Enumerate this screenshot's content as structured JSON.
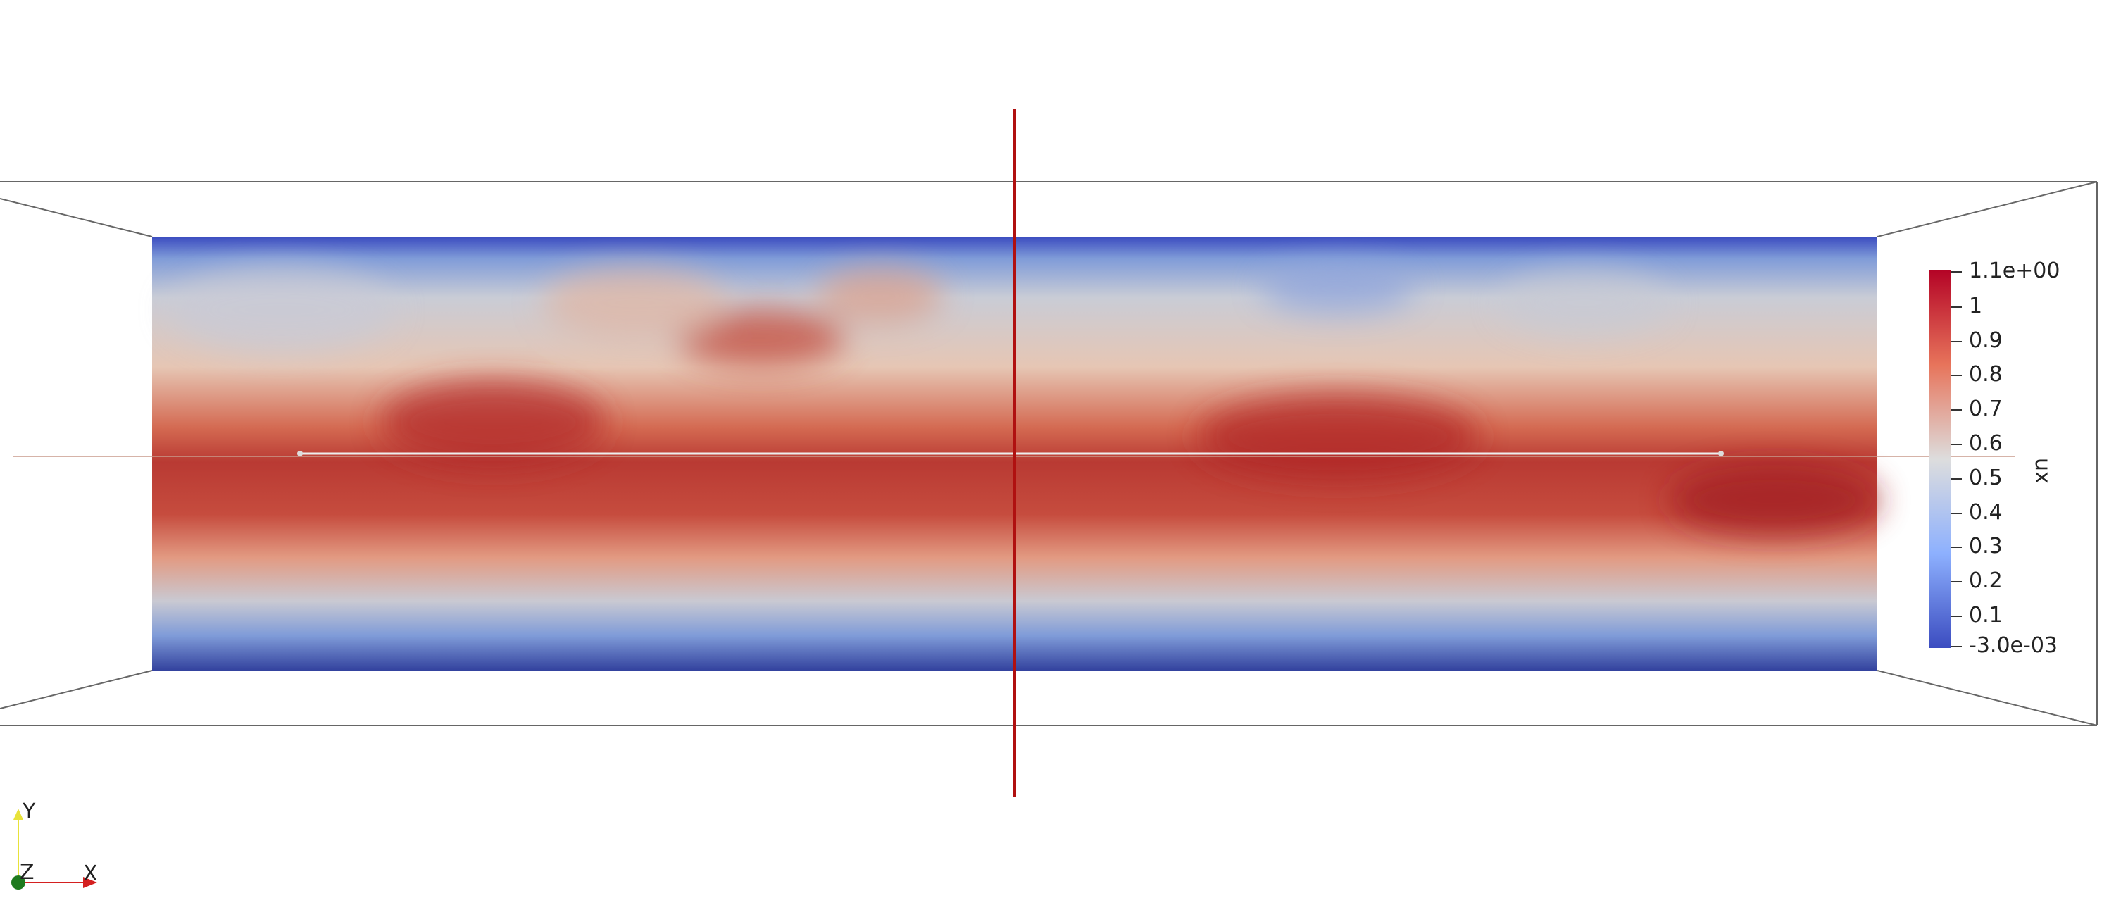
{
  "colors": {
    "background": "#ffffff",
    "box_edge": "#666666",
    "probe_line": "#eeeeee",
    "plane_widget": "#b01010",
    "colormap_low": "#3b4cc0",
    "colormap_mid": "#dddddd",
    "colormap_high": "#b40426"
  },
  "field": {
    "array_name": "ux",
    "colormap": "Cool to Warm",
    "range": [
      -0.003,
      1.1
    ]
  },
  "legend": {
    "title": "ux",
    "ticks": [
      {
        "label": "1.1e+00",
        "value": 1.1
      },
      {
        "label": "1",
        "value": 1.0
      },
      {
        "label": "0.9",
        "value": 0.9
      },
      {
        "label": "0.8",
        "value": 0.8
      },
      {
        "label": "0.7",
        "value": 0.7
      },
      {
        "label": "0.6",
        "value": 0.6
      },
      {
        "label": "0.5",
        "value": 0.5
      },
      {
        "label": "0.4",
        "value": 0.4
      },
      {
        "label": "0.3",
        "value": 0.3
      },
      {
        "label": "0.2",
        "value": 0.2
      },
      {
        "label": "0.1",
        "value": 0.1
      },
      {
        "label": "-3.0e-03",
        "value": -0.003
      }
    ]
  },
  "orientation_axes": {
    "y_label": "Y",
    "z_label": "Z",
    "x_label": "X",
    "y_color": "#e8e23a",
    "x_color": "#d42020",
    "z_color": "#1e7a1e"
  }
}
